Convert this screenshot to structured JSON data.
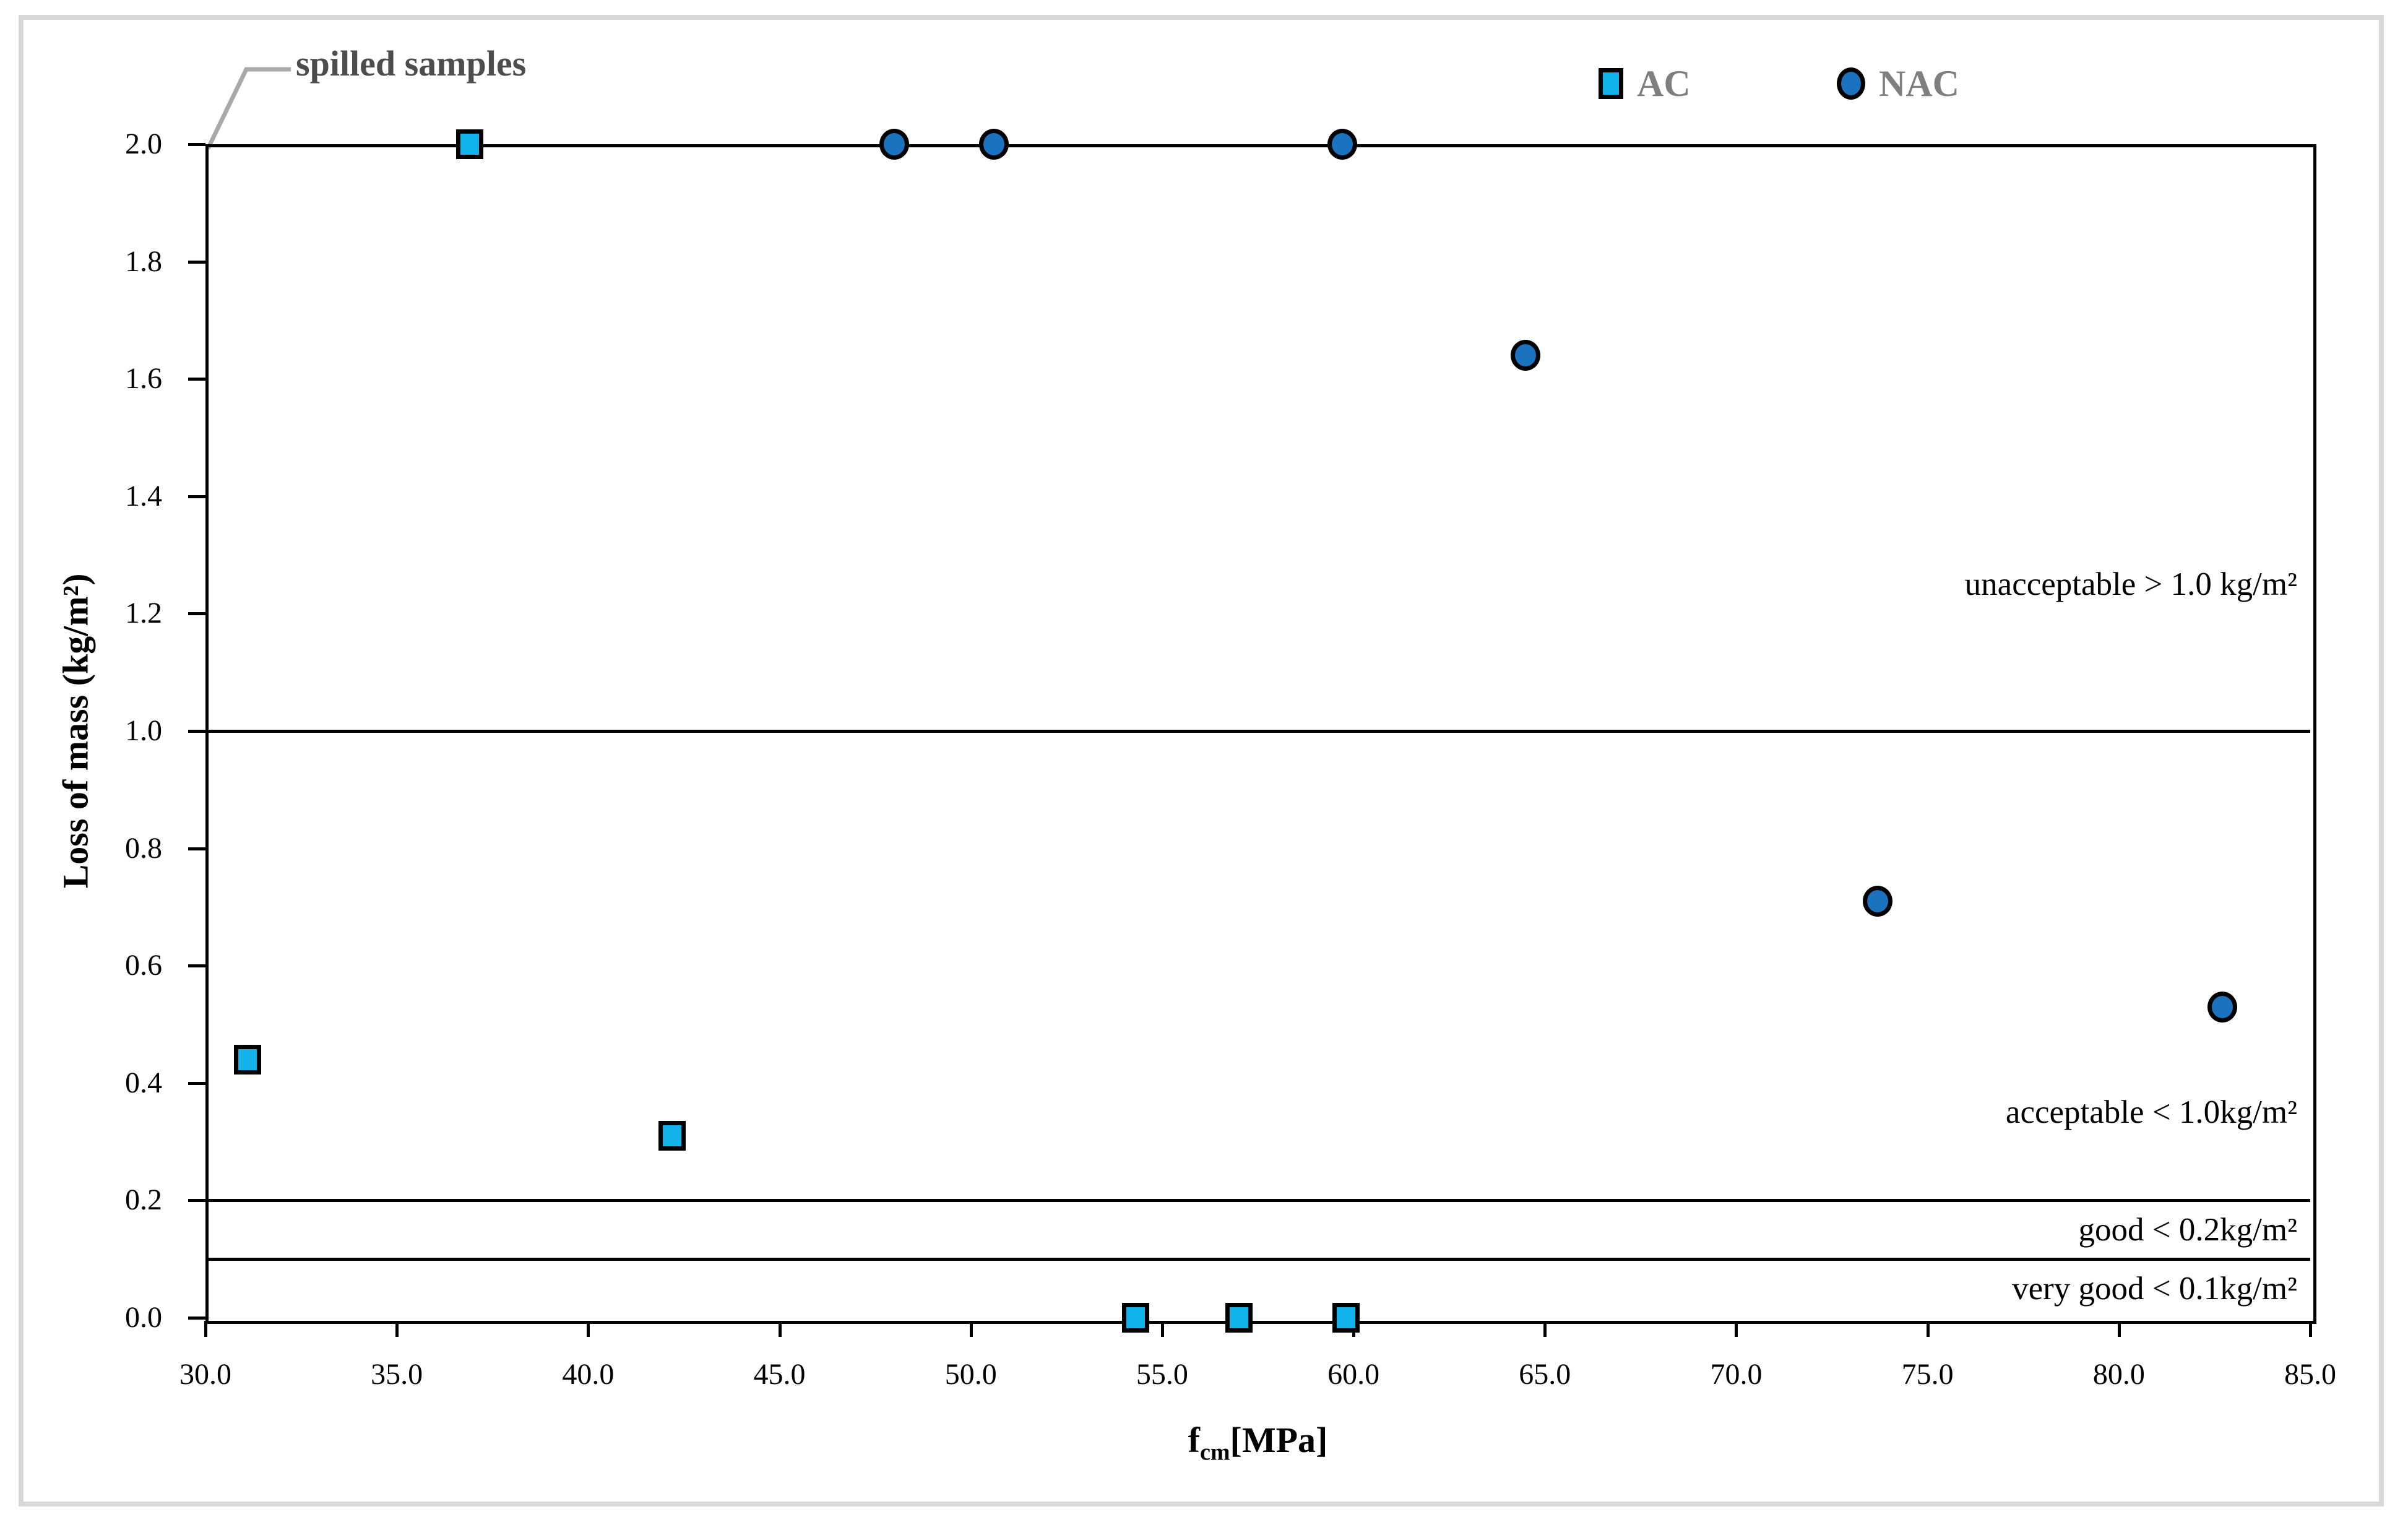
{
  "figure": {
    "spilled_label": "spilled samples",
    "callout_color": "#a9a9a9"
  },
  "chart_data": {
    "type": "scatter",
    "xlabel": {
      "prefix": "f",
      "sub": "cm",
      "suffix": "[MPa]"
    },
    "ylabel": "Loss of mass (kg/m²)",
    "xlim": [
      30,
      85
    ],
    "ylim": [
      0,
      2
    ],
    "grid": false,
    "legend_position": "top-right",
    "x_ticks": {
      "values": [
        30,
        35,
        40,
        45,
        50,
        55,
        60,
        65,
        70,
        75,
        80,
        85
      ],
      "labels": [
        "30.0",
        "35.0",
        "40.0",
        "45.0",
        "50.0",
        "55.0",
        "60.0",
        "65.0",
        "70.0",
        "75.0",
        "80.0",
        "85.0"
      ]
    },
    "y_ticks": {
      "values": [
        0,
        0.2,
        0.4,
        0.6,
        0.8,
        1.0,
        1.2,
        1.4,
        1.6,
        1.8,
        2.0
      ],
      "labels": [
        "0.0",
        "0.2",
        "0.4",
        "0.6",
        "0.8",
        "1.0",
        "1.2",
        "1.4",
        "1.6",
        "1.8",
        "2.0"
      ]
    },
    "series": [
      {
        "name": "AC",
        "marker": "square",
        "color": "#12b2ea",
        "points": [
          [
            36.9,
            2.0
          ],
          [
            31.1,
            0.44
          ],
          [
            42.2,
            0.31
          ],
          [
            54.3,
            0.0
          ],
          [
            57.0,
            0.0
          ],
          [
            59.8,
            0.0
          ]
        ]
      },
      {
        "name": "NAC",
        "marker": "circle",
        "color": "#1b72be",
        "points": [
          [
            48.0,
            2.0
          ],
          [
            50.6,
            2.0
          ],
          [
            59.7,
            2.0
          ],
          [
            64.5,
            1.64
          ],
          [
            73.7,
            0.71
          ],
          [
            82.7,
            0.53
          ]
        ]
      }
    ],
    "reference_lines": [
      1.0,
      0.2,
      0.1
    ],
    "zone_labels": [
      {
        "text": "unacceptable > 1.0 kg/m²",
        "y": 1.25
      },
      {
        "text": "acceptable < 1.0kg/m²",
        "y": 0.35
      },
      {
        "text": "good < 0.2kg/m²",
        "y": 0.15
      },
      {
        "text": "very good < 0.1kg/m²",
        "y": 0.05
      }
    ],
    "spilled_samples_note": "markers drawn on the 2.0 line are spilled samples"
  }
}
